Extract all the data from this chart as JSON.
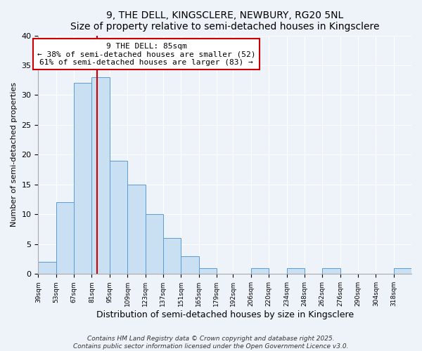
{
  "title": "9, THE DELL, KINGSCLERE, NEWBURY, RG20 5NL",
  "subtitle": "Size of property relative to semi-detached houses in Kingsclere",
  "xlabel": "Distribution of semi-detached houses by size in Kingsclere",
  "ylabel": "Number of semi-detached properties",
  "bin_labels": [
    "39sqm",
    "53sqm",
    "67sqm",
    "81sqm",
    "95sqm",
    "109sqm",
    "123sqm",
    "137sqm",
    "151sqm",
    "165sqm",
    "179sqm",
    "192sqm",
    "206sqm",
    "220sqm",
    "234sqm",
    "248sqm",
    "262sqm",
    "276sqm",
    "290sqm",
    "304sqm",
    "318sqm"
  ],
  "bar_values": [
    2,
    12,
    32,
    33,
    19,
    15,
    10,
    6,
    3,
    1,
    0,
    0,
    1,
    0,
    1,
    0,
    1,
    0,
    0,
    0,
    1
  ],
  "bin_edges": [
    39,
    53,
    67,
    81,
    95,
    109,
    123,
    137,
    151,
    165,
    179,
    192,
    206,
    220,
    234,
    248,
    262,
    276,
    290,
    304,
    318,
    332
  ],
  "property_value": 85,
  "bar_color": "#c9dff2",
  "bar_edge_color": "#5b9bd5",
  "highlight_line_color": "#cc0000",
  "annotation_line1": "9 THE DELL: 85sqm",
  "annotation_line2": "← 38% of semi-detached houses are smaller (52)",
  "annotation_line3": "61% of semi-detached houses are larger (83) →",
  "annotation_box_color": "#cc0000",
  "ylim": [
    0,
    40
  ],
  "yticks": [
    0,
    5,
    10,
    15,
    20,
    25,
    30,
    35,
    40
  ],
  "background_color": "#eef2f9",
  "footer_line1": "Contains HM Land Registry data © Crown copyright and database right 2025.",
  "footer_line2": "Contains public sector information licensed under the Open Government Licence v3.0."
}
